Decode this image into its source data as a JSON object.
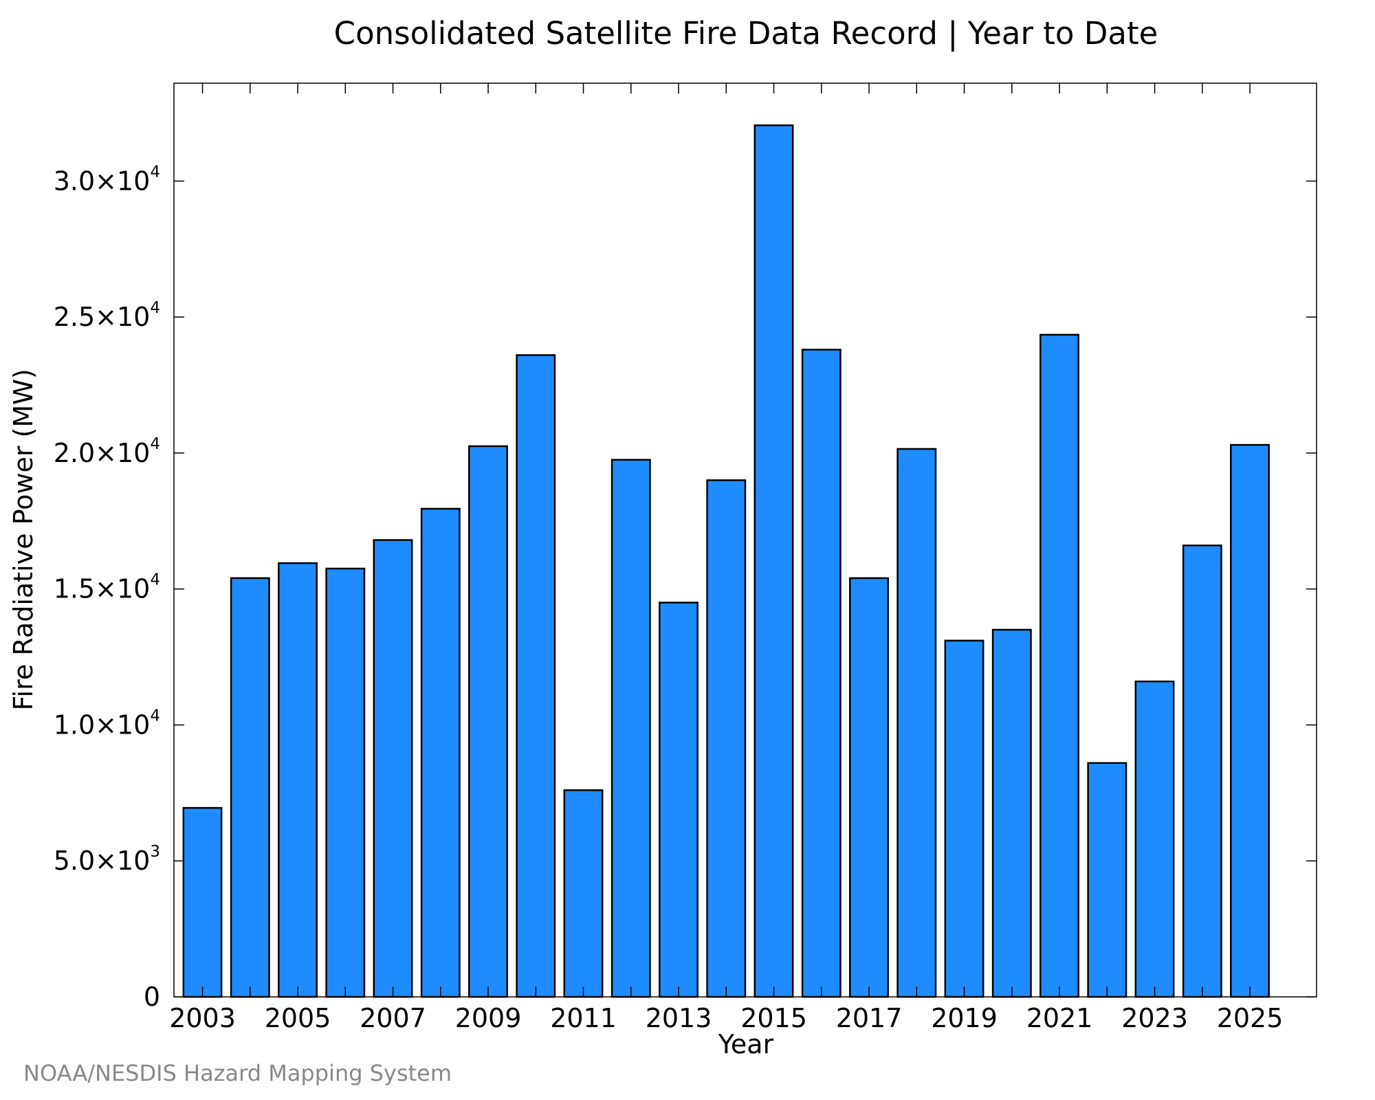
{
  "colors": {
    "bar_fill": "#1e8cff",
    "bar_stroke": "#000000",
    "credit_text": "#888888"
  },
  "chart_data": {
    "type": "bar",
    "title": "Consolidated Satellite Fire Data Record | Year to Date",
    "xlabel": "Year",
    "ylabel": "Fire Radiative Power (MW)",
    "ylim": [
      0,
      33600
    ],
    "x_range": [
      2002.4,
      2026.4
    ],
    "grid": false,
    "categories": [
      2003,
      2004,
      2005,
      2006,
      2007,
      2008,
      2009,
      2010,
      2011,
      2012,
      2013,
      2014,
      2015,
      2016,
      2017,
      2018,
      2019,
      2020,
      2021,
      2022,
      2023,
      2024,
      2025
    ],
    "values": [
      6950,
      15400,
      15950,
      15750,
      16800,
      17950,
      20250,
      23600,
      7600,
      19750,
      14500,
      19000,
      32050,
      23800,
      15400,
      20150,
      13100,
      13500,
      24350,
      8600,
      11600,
      16600,
      20300
    ],
    "x_ticks": [
      2003,
      2004,
      2005,
      2006,
      2007,
      2008,
      2009,
      2010,
      2011,
      2012,
      2013,
      2014,
      2015,
      2016,
      2017,
      2018,
      2019,
      2020,
      2021,
      2022,
      2023,
      2024,
      2025
    ],
    "x_tick_labels": [
      "2003",
      "",
      "2005",
      "",
      "2007",
      "",
      "2009",
      "",
      "2011",
      "",
      "2013",
      "",
      "2015",
      "",
      "2017",
      "",
      "2019",
      "",
      "2021",
      "",
      "2023",
      "",
      "2025"
    ],
    "y_ticks": [
      {
        "value": 0,
        "mantissa": "0",
        "exponent": ""
      },
      {
        "value": 5000,
        "mantissa": "5.0×10",
        "exponent": "3"
      },
      {
        "value": 10000,
        "mantissa": "1.0×10",
        "exponent": "4"
      },
      {
        "value": 15000,
        "mantissa": "1.5×10",
        "exponent": "4"
      },
      {
        "value": 20000,
        "mantissa": "2.0×10",
        "exponent": "4"
      },
      {
        "value": 25000,
        "mantissa": "2.5×10",
        "exponent": "4"
      },
      {
        "value": 30000,
        "mantissa": "3.0×10",
        "exponent": "4"
      }
    ]
  },
  "credit": "NOAA/NESDIS Hazard Mapping System"
}
